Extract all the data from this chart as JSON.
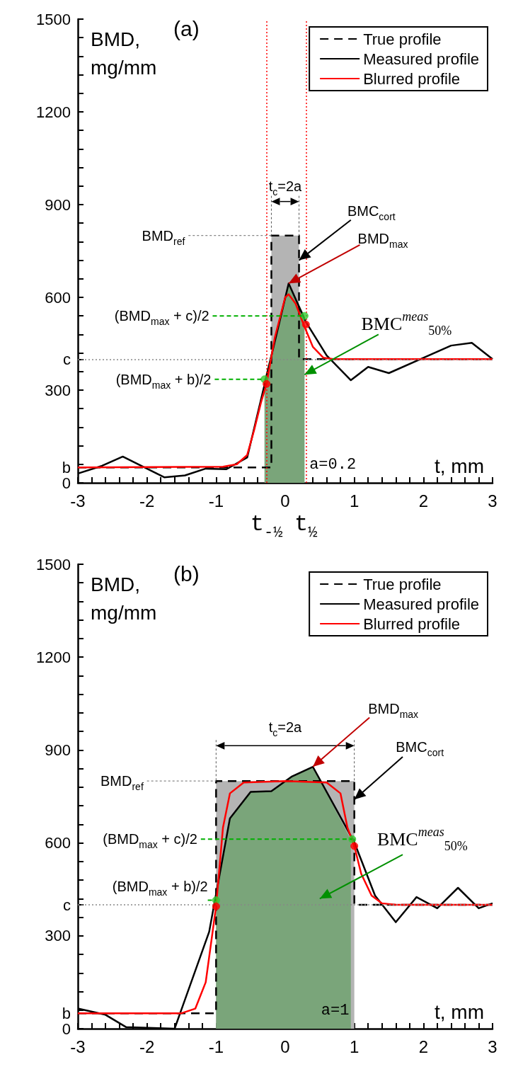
{
  "chart_data": [
    {
      "type": "line",
      "title": "(a)",
      "xlabel": "t, mm",
      "ylabel": "BMD, mg/mm",
      "xlim": [
        -3,
        3
      ],
      "xticks": [
        -3,
        {
          "value": -2.8,
          "label": null
        },
        {
          "value": -2.6,
          "label": null
        },
        {
          "value": -2.4,
          "label": null
        },
        {
          "value": -2.2,
          "label": null
        },
        -2,
        {
          "value": -1.8,
          "label": null
        },
        {
          "value": -1.6,
          "label": null
        },
        {
          "value": -1.4,
          "label": null
        },
        {
          "value": -1.2,
          "label": null
        },
        -1,
        {
          "value": -0.8,
          "label": null
        },
        {
          "value": -0.6,
          "label": null
        },
        {
          "value": -0.4,
          "label": null
        },
        {
          "value": -0.2,
          "label": null
        },
        0,
        {
          "value": 0.2,
          "label": null
        },
        {
          "value": 0.4,
          "label": null
        },
        {
          "value": 0.6,
          "label": null
        },
        {
          "value": 0.8,
          "label": null
        },
        1,
        {
          "value": 1.2,
          "label": null
        },
        {
          "value": 1.4,
          "label": null
        },
        {
          "value": 1.6,
          "label": null
        },
        {
          "value": 1.8,
          "label": null
        },
        2,
        {
          "value": 2.2,
          "label": null
        },
        {
          "value": 2.4,
          "label": null
        },
        {
          "value": 2.6,
          "label": null
        },
        {
          "value": 2.8,
          "label": null
        },
        3
      ],
      "ylim": [
        0,
        1500
      ],
      "yticks": [
        0,
        {
          "value": 50,
          "label": "b"
        },
        {
          "value": 60,
          "label": null
        },
        {
          "value": 120,
          "label": null
        },
        {
          "value": 180,
          "label": null
        },
        {
          "value": 240,
          "label": null
        },
        300,
        {
          "value": 360,
          "label": null
        },
        {
          "value": 400,
          "label": "c"
        },
        {
          "value": 420,
          "label": null
        },
        {
          "value": 480,
          "label": null
        },
        {
          "value": 540,
          "label": null
        },
        600,
        {
          "value": 660,
          "label": null
        },
        {
          "value": 720,
          "label": null
        },
        {
          "value": 780,
          "label": null
        },
        {
          "value": 840,
          "label": null
        },
        900,
        {
          "value": 960,
          "label": null
        },
        {
          "value": 1020,
          "label": null
        },
        {
          "value": 1080,
          "label": null
        },
        {
          "value": 1140,
          "label": null
        },
        1200,
        {
          "value": 1260,
          "label": null
        },
        {
          "value": 1320,
          "label": null
        },
        {
          "value": 1380,
          "label": null
        },
        {
          "value": 1440,
          "label": null
        },
        1500
      ],
      "grid": false,
      "legend": "top right",
      "marker": "none",
      "series": [
        {
          "type": "area",
          "color": "#b4b4b4",
          "x": [
            -0.2,
            0.2
          ],
          "values": [
            800,
            800
          ]
        },
        {
          "type": "area",
          "color": "#7aa57a",
          "x": [
            -0.3,
            0.05,
            0.28
          ],
          "values": [
            335,
            645,
            540
          ]
        },
        {
          "name": "True profile",
          "color": "#000000",
          "line_style": "dashed",
          "x": [
            -3,
            -0.2,
            -0.2,
            0.2,
            0.2,
            3
          ],
          "values": [
            50,
            50,
            800,
            800,
            400,
            400
          ]
        },
        {
          "name": "Measured profile",
          "color": "#000000",
          "line_style": "solid",
          "x": [
            -3,
            -2.65,
            -2.35,
            -1.75,
            -1.45,
            -1.15,
            -0.85,
            -0.55,
            0.05,
            0.3,
            0.6,
            0.95,
            1.2,
            1.5,
            2.4,
            2.7,
            3
          ],
          "values": [
            30,
            55,
            85,
            18,
            24,
            46,
            44,
            82,
            645,
            520,
            412,
            332,
            375,
            355,
            444,
            453,
            400
          ]
        },
        {
          "name": "Blurred profile",
          "color": "#ff0000",
          "line_style": "solid",
          "x": [
            -3,
            -0.9,
            -0.7,
            -0.55,
            -0.45,
            -0.35,
            -0.27,
            -0.15,
            0,
            0.05,
            0.15,
            0.27,
            0.4,
            0.55,
            0.7,
            3
          ],
          "values": [
            50,
            52,
            60,
            90,
            170,
            260,
            320,
            470,
            600,
            610,
            580,
            510,
            440,
            405,
            400,
            400
          ]
        },
        {
          "type": "scatter",
          "marker": "circle",
          "color": "#33cc33",
          "x": [
            -0.3,
            0.28
          ],
          "values": [
            335,
            540
          ]
        },
        {
          "type": "scatter",
          "marker": "circle",
          "color": "#ff0000",
          "x": [
            -0.27,
            0.3
          ],
          "values": [
            320,
            512
          ]
        }
      ],
      "ref_lines": [
        {
          "axis": "y",
          "value": 400,
          "color": "#888888",
          "line_style": "dotted"
        },
        {
          "axis": "x",
          "value": -0.27,
          "label": "t$_{-½}$",
          "color": "#ff0000",
          "line_style": "dotted"
        },
        {
          "axis": "x",
          "value": 0.3,
          "label": "t$_{½}$",
          "color": "#ff0000",
          "line_style": "dotted"
        }
      ],
      "annotations": [
        {
          "text": "t$_{c}$=2a",
          "x": 0,
          "y": 800
        },
        {
          "text": "BMD$_{ref}$",
          "x": -0.2,
          "y": 800
        },
        {
          "text": "BMC$_{cort}$",
          "x": 0.2,
          "y": 720
        },
        {
          "text": "BMD$_{max}$",
          "x": 0.05,
          "y": 645
        },
        {
          "text": "(BMD$_{max}$ + c)/2",
          "x": 0.28,
          "y": 540
        },
        {
          "text": "(BMD$_{max}$ + b)/2",
          "x": -0.3,
          "y": 335
        },
        {
          "text": "BMC$^{meas}$$_{50%}$",
          "x": 0.28,
          "y": 350
        },
        "a=0.2"
      ]
    },
    {
      "type": "line",
      "title": "(b)",
      "xlabel": "t, mm",
      "ylabel": "BMD, mg/mm",
      "xlim": [
        -3,
        3
      ],
      "xticks": [
        -3,
        {
          "value": -2.8,
          "label": null
        },
        {
          "value": -2.6,
          "label": null
        },
        {
          "value": -2.4,
          "label": null
        },
        {
          "value": -2.2,
          "label": null
        },
        -2,
        {
          "value": -1.8,
          "label": null
        },
        {
          "value": -1.6,
          "label": null
        },
        {
          "value": -1.4,
          "label": null
        },
        {
          "value": -1.2,
          "label": null
        },
        -1,
        {
          "value": -0.8,
          "label": null
        },
        {
          "value": -0.6,
          "label": null
        },
        {
          "value": -0.4,
          "label": null
        },
        {
          "value": -0.2,
          "label": null
        },
        0,
        {
          "value": 0.2,
          "label": null
        },
        {
          "value": 0.4,
          "label": null
        },
        {
          "value": 0.6,
          "label": null
        },
        {
          "value": 0.8,
          "label": null
        },
        1,
        {
          "value": 1.2,
          "label": null
        },
        {
          "value": 1.4,
          "label": null
        },
        {
          "value": 1.6,
          "label": null
        },
        {
          "value": 1.8,
          "label": null
        },
        2,
        {
          "value": 2.2,
          "label": null
        },
        {
          "value": 2.4,
          "label": null
        },
        {
          "value": 2.6,
          "label": null
        },
        {
          "value": 2.8,
          "label": null
        },
        3
      ],
      "ylim": [
        0,
        1500
      ],
      "yticks": [
        0,
        {
          "value": 50,
          "label": "b"
        },
        {
          "value": 60,
          "label": null
        },
        {
          "value": 120,
          "label": null
        },
        {
          "value": 180,
          "label": null
        },
        {
          "value": 240,
          "label": null
        },
        300,
        {
          "value": 360,
          "label": null
        },
        {
          "value": 400,
          "label": "c"
        },
        {
          "value": 420,
          "label": null
        },
        {
          "value": 480,
          "label": null
        },
        {
          "value": 540,
          "label": null
        },
        600,
        {
          "value": 660,
          "label": null
        },
        {
          "value": 720,
          "label": null
        },
        {
          "value": 780,
          "label": null
        },
        {
          "value": 840,
          "label": null
        },
        900,
        {
          "value": 960,
          "label": null
        },
        {
          "value": 1020,
          "label": null
        },
        {
          "value": 1080,
          "label": null
        },
        {
          "value": 1140,
          "label": null
        },
        1200,
        {
          "value": 1260,
          "label": null
        },
        {
          "value": 1320,
          "label": null
        },
        {
          "value": 1380,
          "label": null
        },
        {
          "value": 1440,
          "label": null
        },
        1500
      ],
      "grid": false,
      "legend": "top right",
      "marker": "none",
      "series": [
        {
          "type": "area",
          "color": "#b4b4b4",
          "x": [
            -1,
            1
          ],
          "values": [
            800,
            800
          ]
        },
        {
          "type": "area",
          "color": "#7aa57a",
          "x": [
            -1,
            -0.8,
            -0.5,
            -0.2,
            0.1,
            0.4,
            0.95
          ],
          "values": [
            447,
            679,
            765,
            767,
            815,
            846,
            610
          ]
        },
        {
          "name": "True profile",
          "color": "#000000",
          "line_style": "dashed",
          "x": [
            -3,
            -1,
            -1,
            1,
            1,
            3
          ],
          "values": [
            50,
            50,
            800,
            800,
            400,
            400
          ]
        },
        {
          "name": "Measured profile",
          "color": "#000000",
          "line_style": "solid",
          "x": [
            -3,
            -2.6,
            -2.3,
            -1.6,
            -1.1,
            -0.8,
            -0.5,
            -0.2,
            0.1,
            0.4,
            1,
            1.3,
            1.6,
            1.9,
            2.2,
            2.5,
            2.8,
            3
          ],
          "values": [
            65,
            45,
            5,
            0,
            313,
            679,
            765,
            767,
            815,
            846,
            602,
            430,
            344,
            425,
            389,
            455,
            389,
            405
          ]
        },
        {
          "name": "Blurred profile",
          "color": "#ff0000",
          "line_style": "solid",
          "x": [
            -3,
            -1.5,
            -1.3,
            -1.15,
            -1,
            -0.9,
            -0.8,
            -0.6,
            0,
            0.6,
            0.8,
            0.9,
            1,
            1.1,
            1.25,
            1.4,
            1.6,
            3
          ],
          "values": [
            50,
            50,
            65,
            150,
            395,
            650,
            760,
            795,
            800,
            795,
            760,
            650,
            590,
            500,
            430,
            405,
            400,
            400
          ]
        },
        {
          "type": "scatter",
          "marker": "circle",
          "color": "#33cc33",
          "x": [
            -1,
            0.97
          ],
          "values": [
            415,
            612
          ]
        },
        {
          "type": "scatter",
          "marker": "circle",
          "color": "#ff0000",
          "x": [
            -1,
            1
          ],
          "values": [
            395,
            590
          ]
        }
      ],
      "ref_lines": [
        {
          "axis": "y",
          "value": 400,
          "color": "#888888",
          "line_style": "dotted"
        }
      ],
      "annotations": [
        "t$_{c}$=2a",
        {
          "text": "BMD$_{ref}$",
          "x": -1,
          "y": 800
        },
        {
          "text": "BMC$_{cort}$",
          "x": 1,
          "y": 740
        },
        {
          "text": "BMD$_{max}$",
          "x": 0.4,
          "y": 846
        },
        {
          "text": "(BMD$_{max}$ + c)/2",
          "x": 0.97,
          "y": 612
        },
        {
          "text": "(BMD$_{max}$ + b)/2",
          "x": -1,
          "y": 415
        },
        "BMC$^{meas}$$_{50%}$",
        "a=1"
      ]
    }
  ]
}
